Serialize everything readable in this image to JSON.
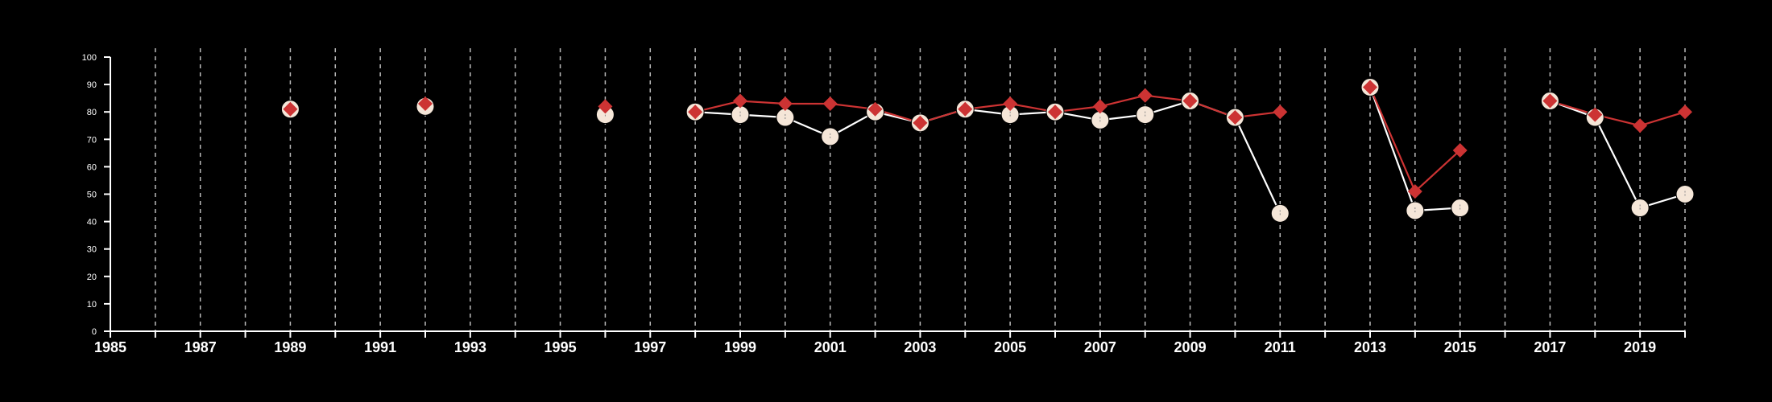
{
  "colors": {
    "background": "#000000",
    "axis": "#ffffff",
    "grid": "#bbbbbb",
    "cream_series": "#f5e6d8",
    "cream_line": "#ffffff",
    "red_series": "#cc3333"
  },
  "chart_data": {
    "type": "line",
    "xlim": [
      1985,
      2020
    ],
    "ylim": [
      0,
      100
    ],
    "x_ticks": [
      1985,
      1987,
      1989,
      1991,
      1993,
      1995,
      1997,
      1999,
      2001,
      2003,
      2005,
      2007,
      2009,
      2011,
      2013,
      2015,
      2017,
      2019
    ],
    "y_ticks": [
      0,
      10,
      20,
      30,
      40,
      50,
      60,
      70,
      80,
      90,
      100
    ],
    "grid": "vertical dashed lines at each year",
    "legend": "none",
    "series": [
      {
        "marker": "circle",
        "color": "cream",
        "points": [
          [
            1989,
            81
          ],
          [
            1992,
            82
          ],
          [
            1996,
            79
          ],
          [
            1998,
            80
          ],
          [
            1999,
            79
          ],
          [
            2000,
            78
          ],
          [
            2001,
            71
          ],
          [
            2002,
            80
          ],
          [
            2003,
            76
          ],
          [
            2004,
            81
          ],
          [
            2005,
            79
          ],
          [
            2006,
            80
          ],
          [
            2007,
            77
          ],
          [
            2008,
            79
          ],
          [
            2009,
            84
          ],
          [
            2010,
            78
          ],
          [
            2011,
            43
          ],
          [
            2013,
            89
          ],
          [
            2014,
            44
          ],
          [
            2015,
            45
          ],
          [
            2017,
            84
          ],
          [
            2018,
            78
          ],
          [
            2019,
            45
          ],
          [
            2020,
            50
          ]
        ],
        "segments": [
          [
            1998,
            2011
          ],
          [
            2013,
            2015
          ],
          [
            2017,
            2020
          ]
        ]
      },
      {
        "marker": "diamond",
        "color": "red",
        "points": [
          [
            1989,
            81
          ],
          [
            1992,
            83
          ],
          [
            1996,
            82
          ],
          [
            1998,
            80
          ],
          [
            1999,
            84
          ],
          [
            2000,
            83
          ],
          [
            2001,
            83
          ],
          [
            2002,
            81
          ],
          [
            2003,
            76
          ],
          [
            2004,
            81
          ],
          [
            2005,
            83
          ],
          [
            2006,
            80
          ],
          [
            2007,
            82
          ],
          [
            2008,
            86
          ],
          [
            2009,
            84
          ],
          [
            2010,
            78
          ],
          [
            2011,
            80
          ],
          [
            2013,
            89
          ],
          [
            2014,
            51
          ],
          [
            2015,
            66
          ],
          [
            2017,
            84
          ],
          [
            2018,
            79
          ],
          [
            2019,
            75
          ],
          [
            2020,
            80
          ]
        ],
        "segments": [
          [
            1998,
            2011
          ],
          [
            2013,
            2015
          ],
          [
            2017,
            2020
          ]
        ]
      }
    ]
  }
}
